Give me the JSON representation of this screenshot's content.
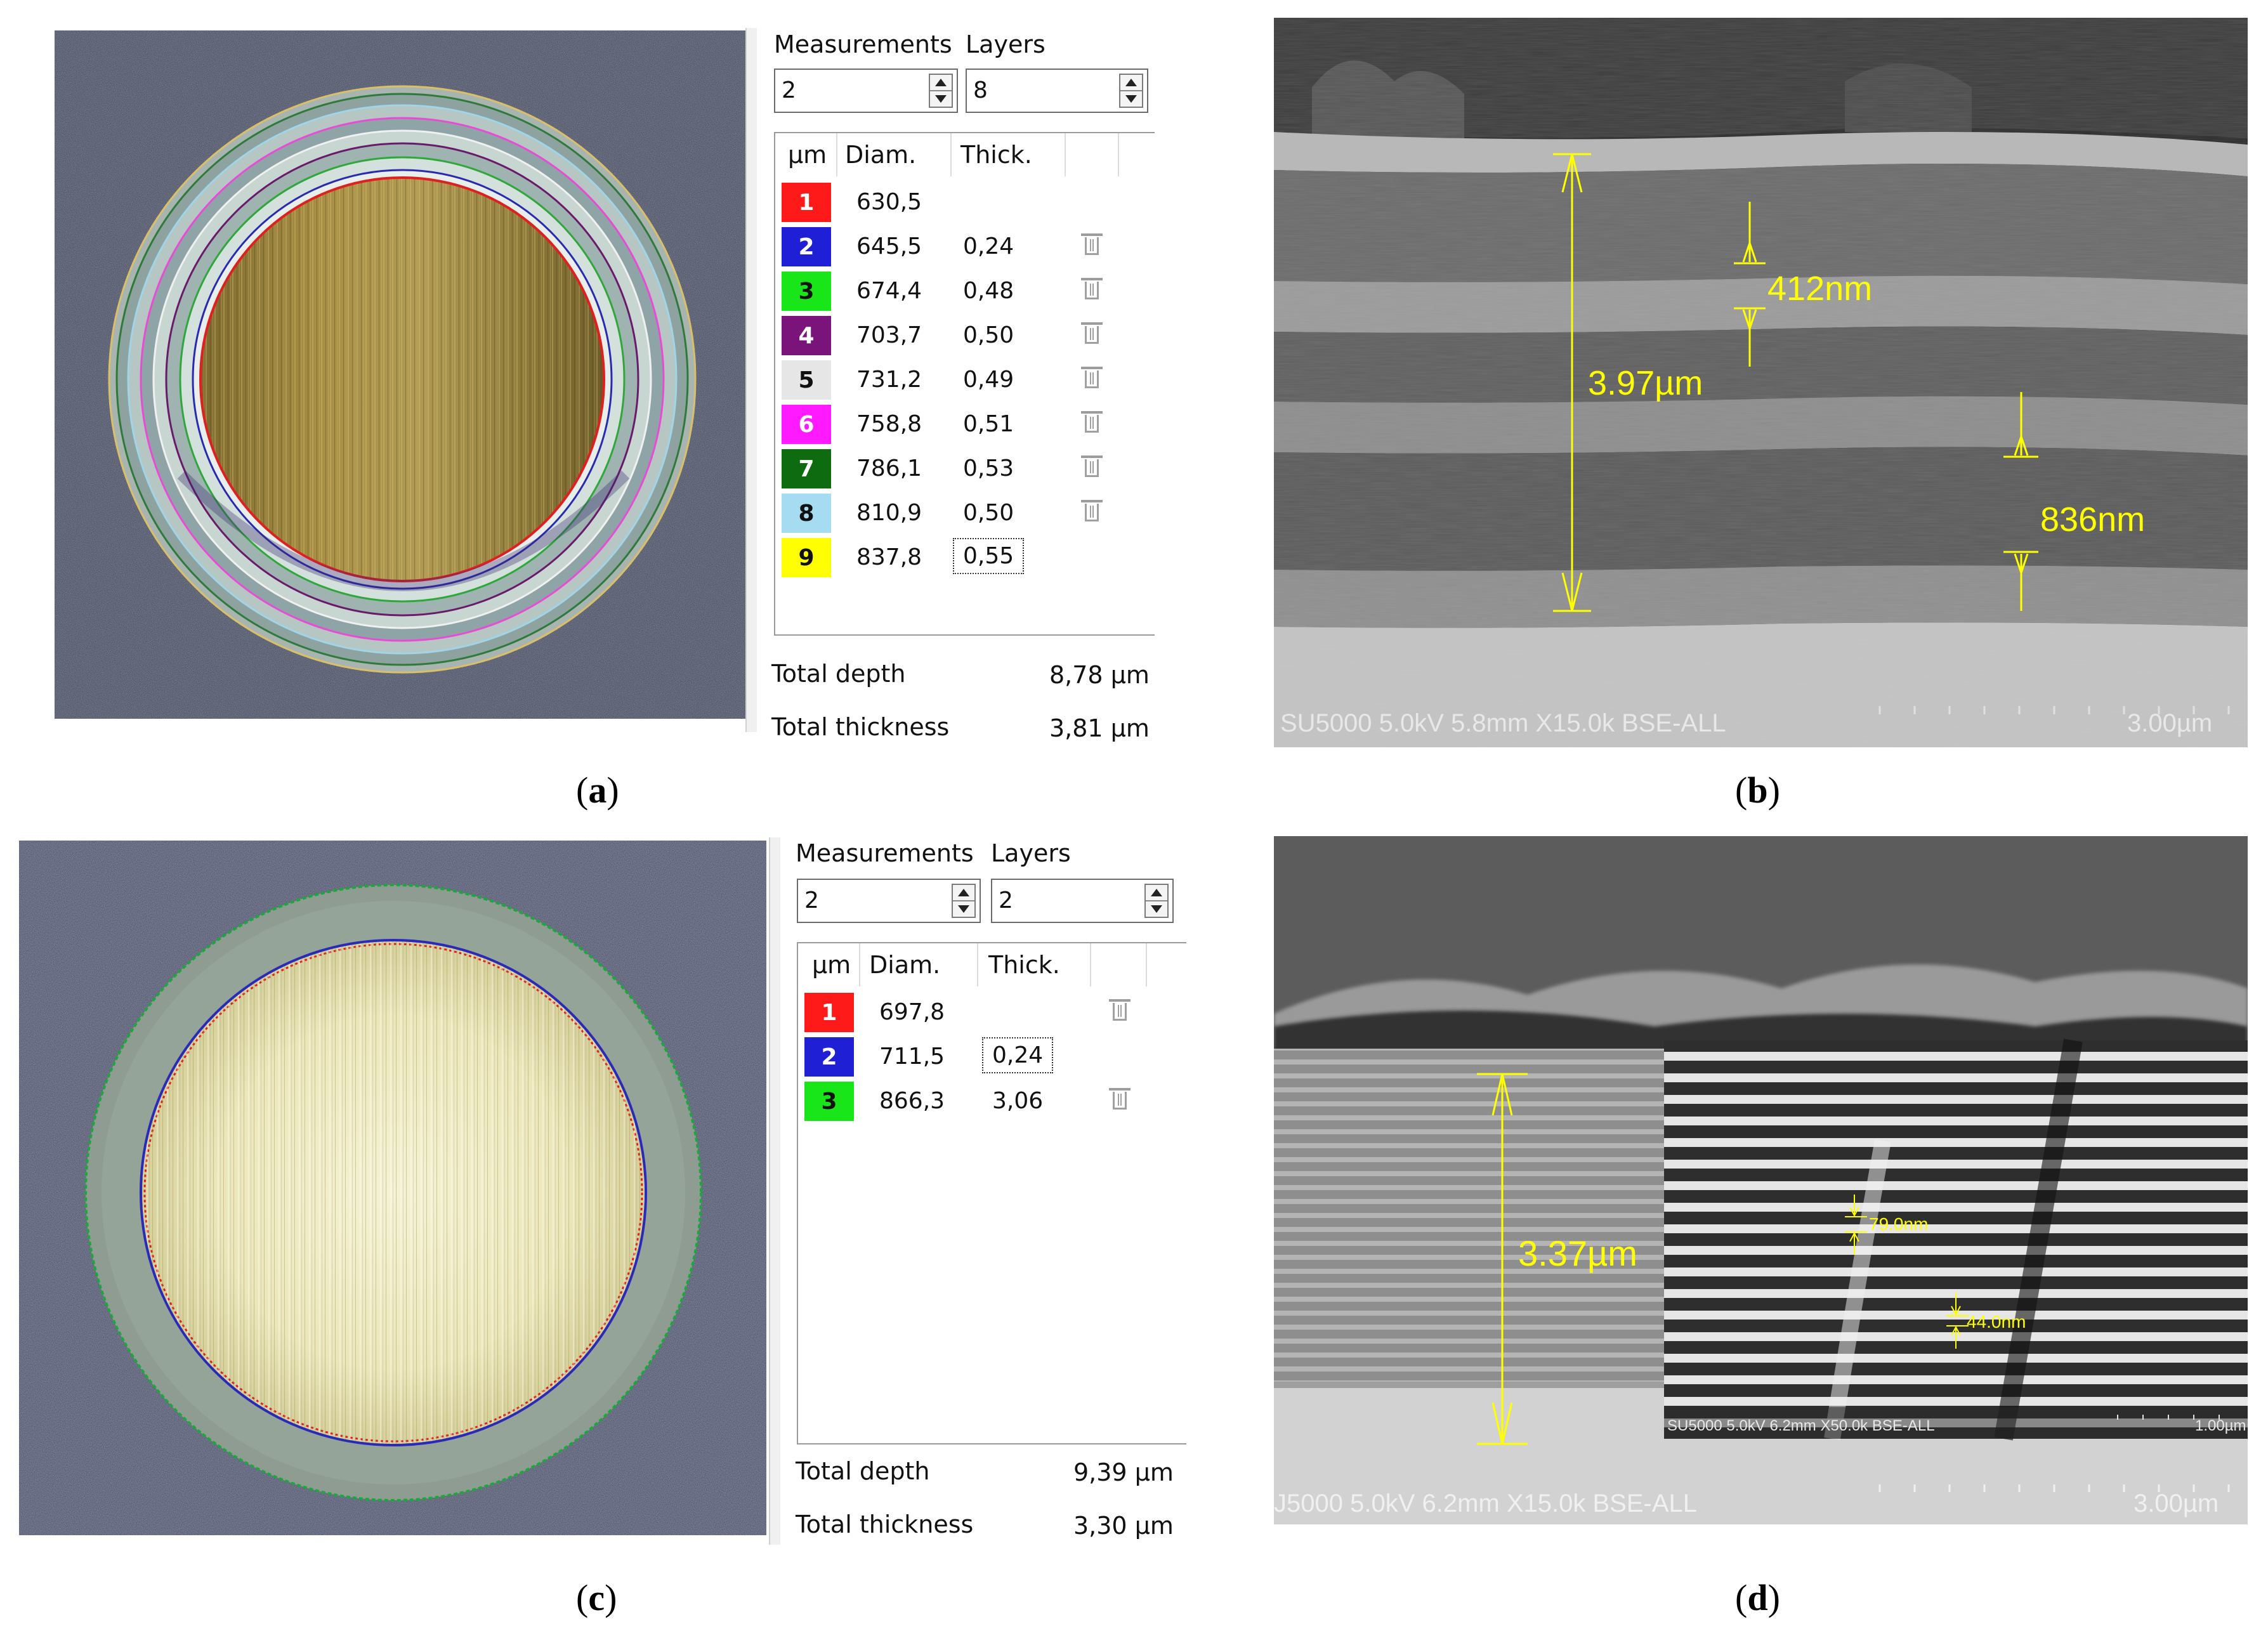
{
  "panel_a": {
    "caption_open": "(",
    "caption_letter": "a",
    "caption_close": ")",
    "measurements_label": "Measurements",
    "layers_label": "Layers",
    "measurements_value": "2",
    "layers_value": "8",
    "headers": [
      "µm",
      "Diam.",
      "Thick."
    ],
    "rows": [
      {
        "num": "1",
        "diam": "630,5",
        "thick": "",
        "color": "#ff1a1a",
        "text": "#ffffff"
      },
      {
        "num": "2",
        "diam": "645,5",
        "thick": "0,24",
        "color": "#1f1fd6",
        "text": "#ffffff"
      },
      {
        "num": "3",
        "diam": "674,4",
        "thick": "0,48",
        "color": "#19e619",
        "text": "#111111"
      },
      {
        "num": "4",
        "diam": "703,7",
        "thick": "0,50",
        "color": "#7a137a",
        "text": "#ffffff"
      },
      {
        "num": "5",
        "diam": "731,2",
        "thick": "0,49",
        "color": "#e6e6e6",
        "text": "#111111"
      },
      {
        "num": "6",
        "diam": "758,8",
        "thick": "0,51",
        "color": "#ff1aff",
        "text": "#ffffff"
      },
      {
        "num": "7",
        "diam": "786,1",
        "thick": "0,53",
        "color": "#0f6b0f",
        "text": "#ffffff"
      },
      {
        "num": "8",
        "diam": "810,9",
        "thick": "0,50",
        "color": "#a6dcf2",
        "text": "#111111"
      },
      {
        "num": "9",
        "diam": "837,8",
        "thick": "0,55",
        "color": "#ffff00",
        "text": "#111111"
      }
    ],
    "total_depth_label": "Total depth",
    "total_depth_value": "8,78 µm",
    "total_thickness_label": "Total thickness",
    "total_thickness_value": "3,81 µm"
  },
  "panel_b": {
    "caption_open": "(",
    "caption_letter": "b",
    "caption_close": ")",
    "total_label": "3.97µm",
    "layer1_label": "412nm",
    "layer2_label": "836nm",
    "info_bar": "SU5000 5.0kV 5.8mm X15.0k BSE-ALL",
    "scale": "3.00µm"
  },
  "panel_c": {
    "caption_open": "(",
    "caption_letter": "c",
    "caption_close": ")",
    "measurements_label": "Measurements",
    "layers_label": "Layers",
    "measurements_value": "2",
    "layers_value": "2",
    "headers": [
      "µm",
      "Diam.",
      "Thick."
    ],
    "rows": [
      {
        "num": "1",
        "diam": "697,8",
        "thick": "",
        "color": "#ff1a1a",
        "text": "#ffffff"
      },
      {
        "num": "2",
        "diam": "711,5",
        "thick": "0,24",
        "color": "#1f1fd6",
        "text": "#ffffff"
      },
      {
        "num": "3",
        "diam": "866,3",
        "thick": "3,06",
        "color": "#19e619",
        "text": "#111111"
      }
    ],
    "total_depth_label": "Total depth",
    "total_depth_value": "9,39 µm",
    "total_thickness_label": "Total thickness",
    "total_thickness_value": "3,30 µm"
  },
  "panel_d": {
    "caption_open": "(",
    "caption_letter": "d",
    "caption_close": ")",
    "total_label": "3.37µm",
    "inset_label1": "79.0nm",
    "inset_label2": "44.0nm",
    "inset_info": "SU5000 5.0kV 6.2mm X50.0k BSE-ALL",
    "inset_scale": "1.00µm",
    "info_bar": "J5000 5.0kV 6.2mm X15.0k BSE-ALL",
    "scale": "3.00µm"
  },
  "colors": {
    "annotation_yellow": "#ffff00",
    "sem_text": "#e8e8e8"
  }
}
